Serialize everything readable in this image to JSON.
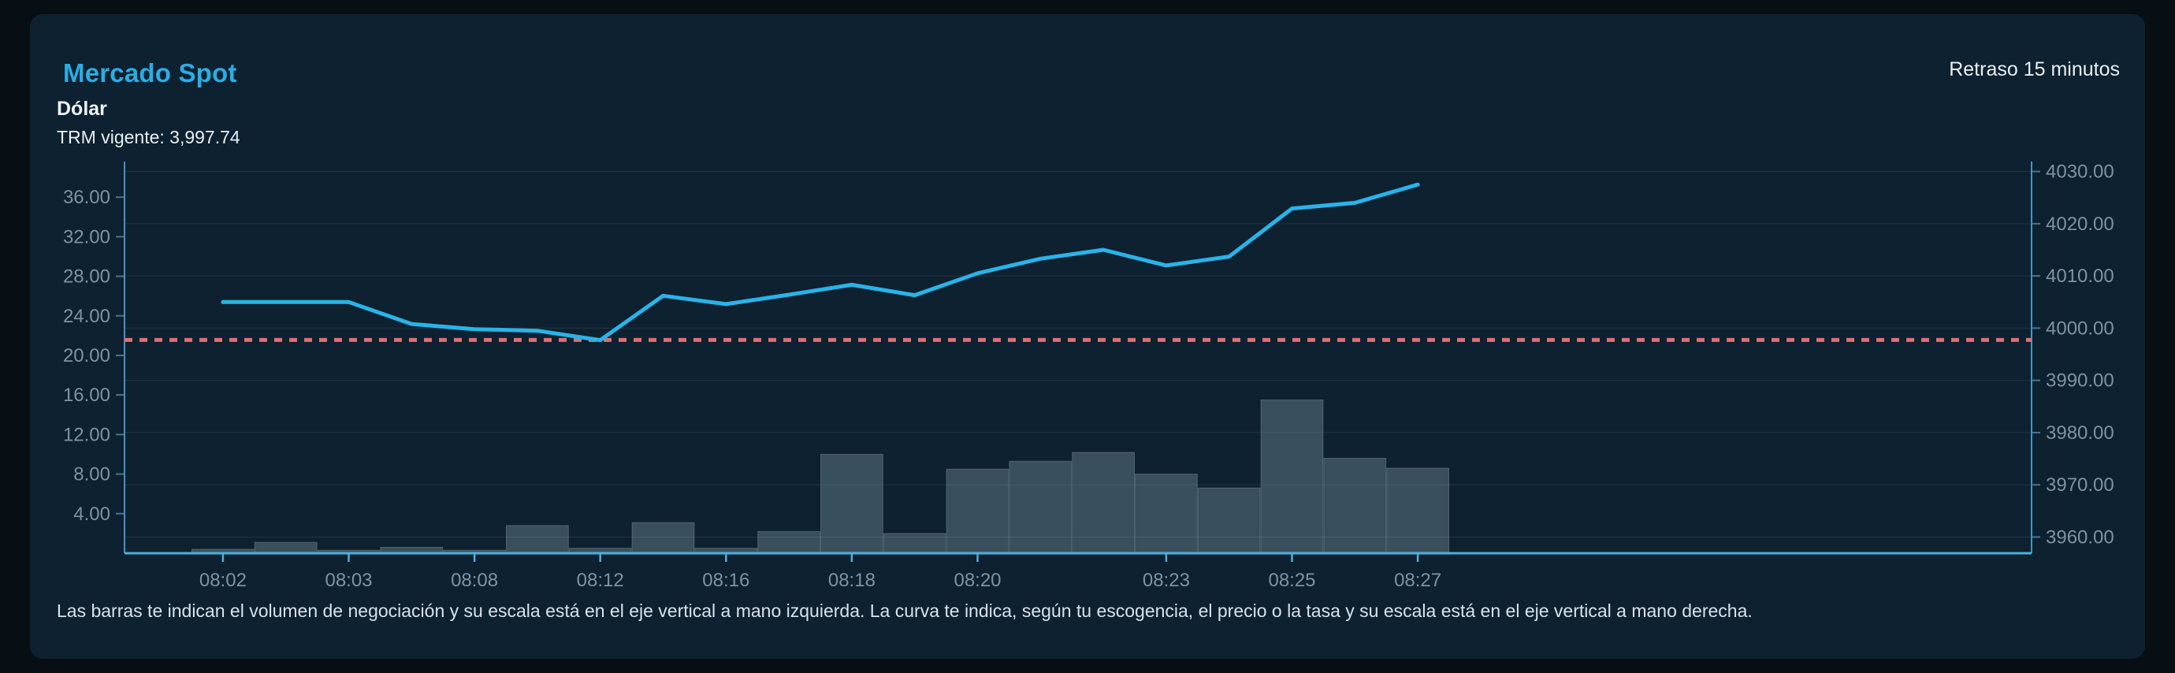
{
  "header": {
    "title": "Mercado Spot",
    "instrument": "Dólar",
    "trm_text": "TRM vigente: 3,997.74",
    "delay_text": "Retraso 15 minutos"
  },
  "footer": {
    "note": "Las barras te indican el volumen de negociación y su escala está en el eje vertical a mano izquierda. La curva te indica, según tu escogencia, el precio o la tasa y su escala está en el eje vertical a mano derecha."
  },
  "chart_data": {
    "type": "bar",
    "subtype": "combo-bar-line-dual-axis",
    "title": "Mercado Spot - Dólar",
    "categories": [
      "08:02",
      "",
      "08:03",
      "",
      "08:08",
      "",
      "08:12",
      "",
      "08:16",
      "",
      "08:18",
      "",
      "08:20",
      "",
      "",
      "08:23",
      "",
      "08:25",
      "",
      "08:27"
    ],
    "series": [
      {
        "name": "Volumen de negociación",
        "type": "bar",
        "axis": "left",
        "values": [
          0.4,
          1.1,
          0.3,
          0.6,
          0.3,
          2.8,
          0.5,
          3.1,
          0.5,
          2.2,
          10.0,
          2.0,
          8.5,
          9.3,
          10.2,
          8.0,
          6.6,
          15.5,
          9.6,
          8.6
        ]
      },
      {
        "name": "Precio / Tasa",
        "type": "line",
        "axis": "right",
        "values": [
          4005.0,
          4005.0,
          4005.0,
          4000.8,
          3999.8,
          3999.5,
          3997.7,
          4006.2,
          4004.6,
          4006.4,
          4008.3,
          4006.3,
          4010.5,
          4013.3,
          4015.0,
          4012.0,
          4013.7,
          4022.9,
          4024.0,
          4027.5
        ]
      }
    ],
    "reference_line": {
      "name": "TRM vigente",
      "value": 3997.74,
      "style": "dashed"
    },
    "left_axis": {
      "min": 0,
      "max": 39.6,
      "ticks": [
        4,
        8,
        12,
        16,
        20,
        24,
        28,
        32,
        36
      ]
    },
    "right_axis": {
      "min": 3956.9,
      "max": 4031.9,
      "ticks": [
        3960,
        3970,
        3980,
        3990,
        4000,
        4010,
        4020,
        4030
      ]
    },
    "grid": "horizontal-right-axis",
    "legend": "none"
  },
  "colors": {
    "page_bg": "#070e14",
    "card_bg": "#0d2130",
    "accent_blue": "#2aade3",
    "line": "#2ab3e8",
    "bar_fill": "rgba(97,118,131,0.55)",
    "bar_stroke": "rgba(152,173,187,0.35)",
    "grid": "rgba(141,166,184,0.15)",
    "axis_side": "#3f96c4",
    "axis_bottom": "#4fb0de",
    "tick_mark": "rgba(110,160,195,0.65)",
    "tick_text": "#7f92a1",
    "reference": "#e06d75"
  }
}
